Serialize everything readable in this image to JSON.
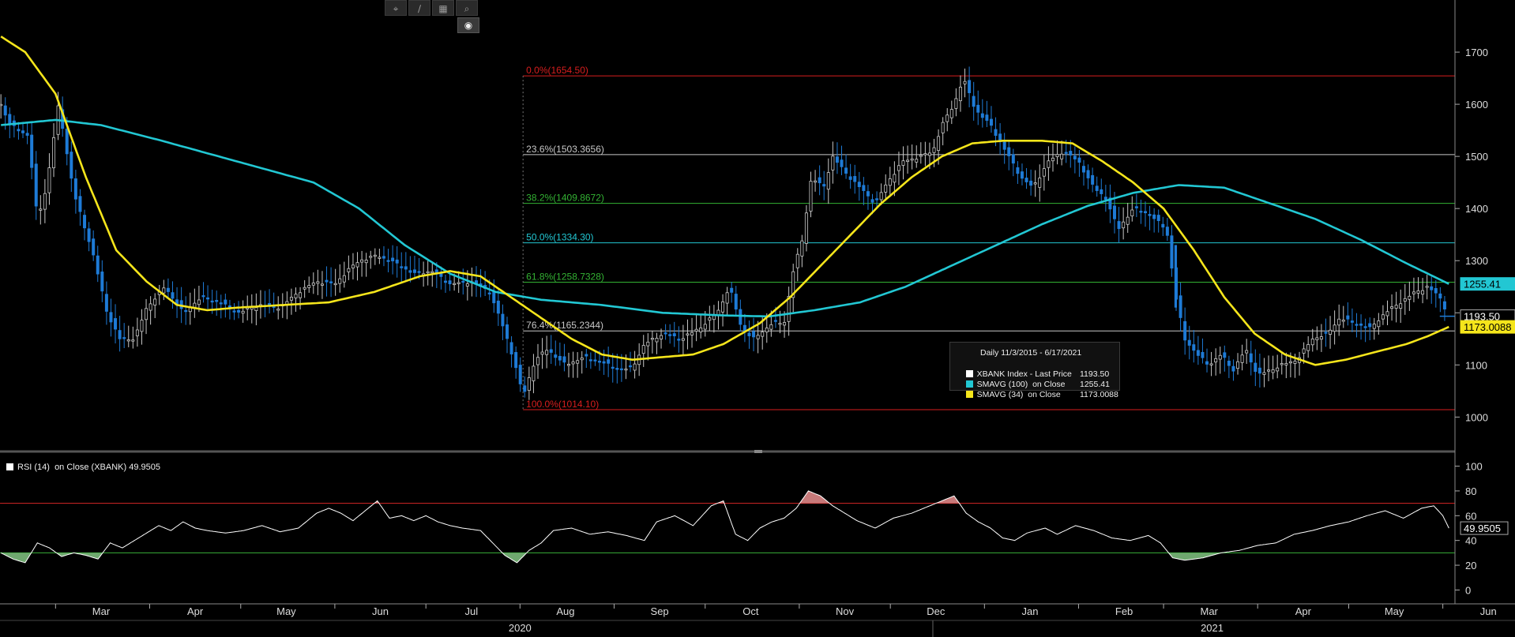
{
  "toolbar": {
    "icons": [
      "crosshair-icon",
      "pencil-icon",
      "grid-icon",
      "zoom-icon",
      "settings-icon"
    ],
    "glyphs": [
      "⌖",
      "∕",
      "▦",
      "⌕",
      "◉"
    ]
  },
  "legend": {
    "header": "Daily 11/3/2015 - 6/17/2021",
    "rows": [
      {
        "label": "XBANK Index - Last Price",
        "value": "1193.50",
        "color": "#ffffff"
      },
      {
        "label": "SMAVG (100)  on Close",
        "value": "1255.41",
        "color": "#22c7d3"
      },
      {
        "label": "SMAVG (34)  on Close",
        "value": "1173.0088",
        "color": "#f5e51b"
      }
    ]
  },
  "rsi_legend": {
    "label": "RSI (14)  on Close (XBANK)",
    "value": "49.9505"
  },
  "colors": {
    "up": "#c8c8c8",
    "down": "#1e7bd6",
    "sma100": "#22c7d3",
    "sma34": "#f5e51b",
    "fib_red": "#d81e1e",
    "fib_white": "#c8c8c8",
    "fib_green": "#33b233",
    "fib_cyan": "#22c7d3",
    "rsi_line": "#ffffff",
    "rsi_over": "#c77a7a",
    "rsi_under": "#6fa86f"
  },
  "chart_data": [
    {
      "type": "line",
      "series_kind": "price",
      "ylim": [
        940,
        1800
      ],
      "yticks": [
        1000,
        1100,
        1200,
        1300,
        1400,
        1500,
        1600,
        1700
      ],
      "months": [
        {
          "label": "Mar",
          "day": 0
        },
        {
          "label": "Apr",
          "day": 31
        },
        {
          "label": "May",
          "day": 61
        },
        {
          "label": "Jun",
          "day": 92
        },
        {
          "label": "Jul",
          "day": 122
        },
        {
          "label": "Aug",
          "day": 153
        },
        {
          "label": "Sep",
          "day": 184
        },
        {
          "label": "Oct",
          "day": 214
        },
        {
          "label": "Nov",
          "day": 245
        },
        {
          "label": "Dec",
          "day": 275
        },
        {
          "label": "Jan",
          "day": 306
        },
        {
          "label": "Feb",
          "day": 337
        },
        {
          "label": "Mar",
          "day": 365
        },
        {
          "label": "Apr",
          "day": 396
        },
        {
          "label": "May",
          "day": 426
        },
        {
          "label": "Jun",
          "day": 457
        }
      ],
      "years": [
        {
          "label": "2020",
          "day": 153
        },
        {
          "label": "2021",
          "day": 381
        }
      ],
      "fib_levels": [
        {
          "label": "0.0%(1654.50)",
          "value": 1654.5,
          "color": "fib_red"
        },
        {
          "label": "23.6%(1503.3656)",
          "value": 1503.3656,
          "color": "fib_white"
        },
        {
          "label": "38.2%(1409.8672)",
          "value": 1409.8672,
          "color": "fib_green"
        },
        {
          "label": "50.0%(1334.30)",
          "value": 1334.3,
          "color": "fib_cyan"
        },
        {
          "label": "61.8%(1258.7328)",
          "value": 1258.7328,
          "color": "fib_green"
        },
        {
          "label": "76.4%(1165.2344)",
          "value": 1165.2344,
          "color": "fib_white"
        },
        {
          "label": "100.0%(1014.10)",
          "value": 1014.1,
          "color": "fib_red"
        }
      ],
      "price_keypoints": [
        [
          -18,
          1600
        ],
        [
          -15,
          1560
        ],
        [
          -9,
          1540
        ],
        [
          -6,
          1380
        ],
        [
          -3,
          1440
        ],
        [
          1,
          1600
        ],
        [
          6,
          1430
        ],
        [
          12,
          1320
        ],
        [
          17,
          1200
        ],
        [
          21,
          1150
        ],
        [
          26,
          1150
        ],
        [
          30,
          1210
        ],
        [
          36,
          1250
        ],
        [
          42,
          1200
        ],
        [
          48,
          1230
        ],
        [
          54,
          1220
        ],
        [
          60,
          1200
        ],
        [
          67,
          1215
        ],
        [
          74,
          1210
        ],
        [
          80,
          1240
        ],
        [
          86,
          1260
        ],
        [
          92,
          1255
        ],
        [
          96,
          1280
        ],
        [
          100,
          1300
        ],
        [
          106,
          1310
        ],
        [
          112,
          1295
        ],
        [
          118,
          1275
        ],
        [
          124,
          1280
        ],
        [
          130,
          1255
        ],
        [
          137,
          1260
        ],
        [
          143,
          1240
        ],
        [
          147,
          1180
        ],
        [
          151,
          1110
        ],
        [
          154,
          1040
        ],
        [
          158,
          1110
        ],
        [
          162,
          1130
        ],
        [
          168,
          1100
        ],
        [
          174,
          1115
        ],
        [
          180,
          1105
        ],
        [
          186,
          1090
        ],
        [
          190,
          1095
        ],
        [
          194,
          1140
        ],
        [
          200,
          1160
        ],
        [
          206,
          1150
        ],
        [
          212,
          1170
        ],
        [
          218,
          1200
        ],
        [
          222,
          1250
        ],
        [
          226,
          1170
        ],
        [
          230,
          1150
        ],
        [
          236,
          1180
        ],
        [
          240,
          1180
        ],
        [
          243,
          1280
        ],
        [
          246,
          1340
        ],
        [
          249,
          1460
        ],
        [
          253,
          1440
        ],
        [
          256,
          1500
        ],
        [
          260,
          1470
        ],
        [
          265,
          1440
        ],
        [
          270,
          1410
        ],
        [
          274,
          1450
        ],
        [
          279,
          1490
        ],
        [
          285,
          1500
        ],
        [
          289,
          1510
        ],
        [
          292,
          1560
        ],
        [
          296,
          1600
        ],
        [
          299,
          1650
        ],
        [
          303,
          1590
        ],
        [
          308,
          1560
        ],
        [
          313,
          1510
        ],
        [
          318,
          1460
        ],
        [
          322,
          1440
        ],
        [
          327,
          1490
        ],
        [
          332,
          1510
        ],
        [
          337,
          1490
        ],
        [
          342,
          1440
        ],
        [
          346,
          1420
        ],
        [
          350,
          1360
        ],
        [
          355,
          1400
        ],
        [
          360,
          1390
        ],
        [
          366,
          1360
        ],
        [
          369,
          1230
        ],
        [
          372,
          1150
        ],
        [
          376,
          1120
        ],
        [
          380,
          1100
        ],
        [
          384,
          1120
        ],
        [
          388,
          1090
        ],
        [
          392,
          1130
        ],
        [
          396,
          1080
        ],
        [
          400,
          1090
        ],
        [
          404,
          1100
        ],
        [
          409,
          1110
        ],
        [
          414,
          1150
        ],
        [
          419,
          1160
        ],
        [
          423,
          1190
        ],
        [
          428,
          1180
        ],
        [
          433,
          1170
        ],
        [
          438,
          1200
        ],
        [
          443,
          1220
        ],
        [
          448,
          1240
        ],
        [
          452,
          1250
        ],
        [
          456,
          1230
        ],
        [
          459,
          1193.5
        ]
      ],
      "sma100_keypoints": [
        [
          -18,
          1560
        ],
        [
          0,
          1570
        ],
        [
          15,
          1560
        ],
        [
          35,
          1530
        ],
        [
          60,
          1490
        ],
        [
          85,
          1450
        ],
        [
          100,
          1400
        ],
        [
          115,
          1330
        ],
        [
          130,
          1275
        ],
        [
          145,
          1240
        ],
        [
          160,
          1225
        ],
        [
          180,
          1215
        ],
        [
          200,
          1200
        ],
        [
          220,
          1195
        ],
        [
          235,
          1193
        ],
        [
          250,
          1205
        ],
        [
          265,
          1220
        ],
        [
          280,
          1250
        ],
        [
          295,
          1290
        ],
        [
          310,
          1330
        ],
        [
          325,
          1370
        ],
        [
          340,
          1405
        ],
        [
          355,
          1430
        ],
        [
          370,
          1445
        ],
        [
          385,
          1440
        ],
        [
          400,
          1410
        ],
        [
          415,
          1380
        ],
        [
          430,
          1340
        ],
        [
          445,
          1295
        ],
        [
          459,
          1255.41
        ]
      ],
      "sma34_keypoints": [
        [
          -18,
          1730
        ],
        [
          -10,
          1700
        ],
        [
          0,
          1620
        ],
        [
          10,
          1460
        ],
        [
          20,
          1320
        ],
        [
          30,
          1260
        ],
        [
          40,
          1215
        ],
        [
          50,
          1205
        ],
        [
          60,
          1210
        ],
        [
          75,
          1215
        ],
        [
          90,
          1220
        ],
        [
          105,
          1240
        ],
        [
          120,
          1270
        ],
        [
          130,
          1280
        ],
        [
          140,
          1270
        ],
        [
          150,
          1230
        ],
        [
          160,
          1190
        ],
        [
          170,
          1150
        ],
        [
          180,
          1120
        ],
        [
          190,
          1110
        ],
        [
          200,
          1115
        ],
        [
          210,
          1120
        ],
        [
          220,
          1140
        ],
        [
          232,
          1180
        ],
        [
          242,
          1230
        ],
        [
          252,
          1290
        ],
        [
          262,
          1350
        ],
        [
          272,
          1410
        ],
        [
          282,
          1460
        ],
        [
          292,
          1500
        ],
        [
          302,
          1525
        ],
        [
          312,
          1530
        ],
        [
          325,
          1530
        ],
        [
          335,
          1525
        ],
        [
          345,
          1490
        ],
        [
          355,
          1450
        ],
        [
          365,
          1400
        ],
        [
          375,
          1320
        ],
        [
          385,
          1230
        ],
        [
          395,
          1160
        ],
        [
          405,
          1120
        ],
        [
          415,
          1100
        ],
        [
          425,
          1110
        ],
        [
          435,
          1125
        ],
        [
          445,
          1140
        ],
        [
          452,
          1155
        ],
        [
          459,
          1173.0088
        ]
      ],
      "last_price": 1193.5,
      "last_sma100": 1255.41,
      "last_sma34": 1173.0088,
      "right_labels": [
        {
          "label": "1255.41",
          "value": 1255.41,
          "bg": "#22c7d3",
          "fg": "#000"
        },
        {
          "label": "1193.50",
          "value": 1193.5,
          "bg": "#000",
          "fg": "#fff"
        },
        {
          "label": "1173.0088",
          "value": 1173.0088,
          "bg": "#f5e51b",
          "fg": "#000"
        }
      ]
    },
    {
      "type": "area",
      "series_kind": "rsi",
      "ylim": [
        -8,
        108
      ],
      "yticks": [
        0,
        20,
        40,
        60,
        80,
        100
      ],
      "overbought": 70,
      "oversold": 30,
      "rsi_keypoints": [
        [
          -18,
          30
        ],
        [
          -14,
          25
        ],
        [
          -10,
          22
        ],
        [
          -6,
          38
        ],
        [
          -2,
          34
        ],
        [
          2,
          27
        ],
        [
          6,
          30
        ],
        [
          10,
          28
        ],
        [
          14,
          25
        ],
        [
          18,
          38
        ],
        [
          22,
          34
        ],
        [
          26,
          40
        ],
        [
          30,
          46
        ],
        [
          34,
          52
        ],
        [
          38,
          48
        ],
        [
          42,
          55
        ],
        [
          46,
          50
        ],
        [
          50,
          48
        ],
        [
          56,
          46
        ],
        [
          62,
          48
        ],
        [
          68,
          52
        ],
        [
          74,
          47
        ],
        [
          80,
          50
        ],
        [
          86,
          62
        ],
        [
          90,
          66
        ],
        [
          94,
          62
        ],
        [
          98,
          56
        ],
        [
          102,
          64
        ],
        [
          106,
          72
        ],
        [
          110,
          58
        ],
        [
          114,
          60
        ],
        [
          118,
          56
        ],
        [
          122,
          60
        ],
        [
          126,
          55
        ],
        [
          130,
          52
        ],
        [
          134,
          50
        ],
        [
          140,
          48
        ],
        [
          144,
          38
        ],
        [
          148,
          28
        ],
        [
          152,
          22
        ],
        [
          156,
          32
        ],
        [
          160,
          38
        ],
        [
          164,
          48
        ],
        [
          170,
          50
        ],
        [
          176,
          45
        ],
        [
          182,
          47
        ],
        [
          188,
          44
        ],
        [
          194,
          40
        ],
        [
          198,
          55
        ],
        [
          204,
          60
        ],
        [
          210,
          52
        ],
        [
          216,
          68
        ],
        [
          220,
          72
        ],
        [
          224,
          45
        ],
        [
          228,
          40
        ],
        [
          232,
          50
        ],
        [
          236,
          55
        ],
        [
          240,
          58
        ],
        [
          244,
          66
        ],
        [
          248,
          80
        ],
        [
          252,
          76
        ],
        [
          256,
          68
        ],
        [
          260,
          62
        ],
        [
          264,
          56
        ],
        [
          270,
          50
        ],
        [
          276,
          58
        ],
        [
          282,
          62
        ],
        [
          288,
          68
        ],
        [
          292,
          72
        ],
        [
          296,
          76
        ],
        [
          300,
          62
        ],
        [
          304,
          55
        ],
        [
          308,
          50
        ],
        [
          312,
          42
        ],
        [
          316,
          40
        ],
        [
          320,
          46
        ],
        [
          326,
          50
        ],
        [
          330,
          45
        ],
        [
          336,
          52
        ],
        [
          342,
          48
        ],
        [
          348,
          42
        ],
        [
          354,
          40
        ],
        [
          360,
          44
        ],
        [
          364,
          38
        ],
        [
          368,
          26
        ],
        [
          372,
          24
        ],
        [
          378,
          26
        ],
        [
          384,
          30
        ],
        [
          390,
          32
        ],
        [
          396,
          36
        ],
        [
          402,
          38
        ],
        [
          408,
          45
        ],
        [
          414,
          48
        ],
        [
          420,
          52
        ],
        [
          426,
          55
        ],
        [
          432,
          60
        ],
        [
          438,
          64
        ],
        [
          444,
          58
        ],
        [
          450,
          66
        ],
        [
          454,
          68
        ],
        [
          457,
          60
        ],
        [
          459,
          49.9505
        ]
      ],
      "last_value": 49.9505
    }
  ]
}
